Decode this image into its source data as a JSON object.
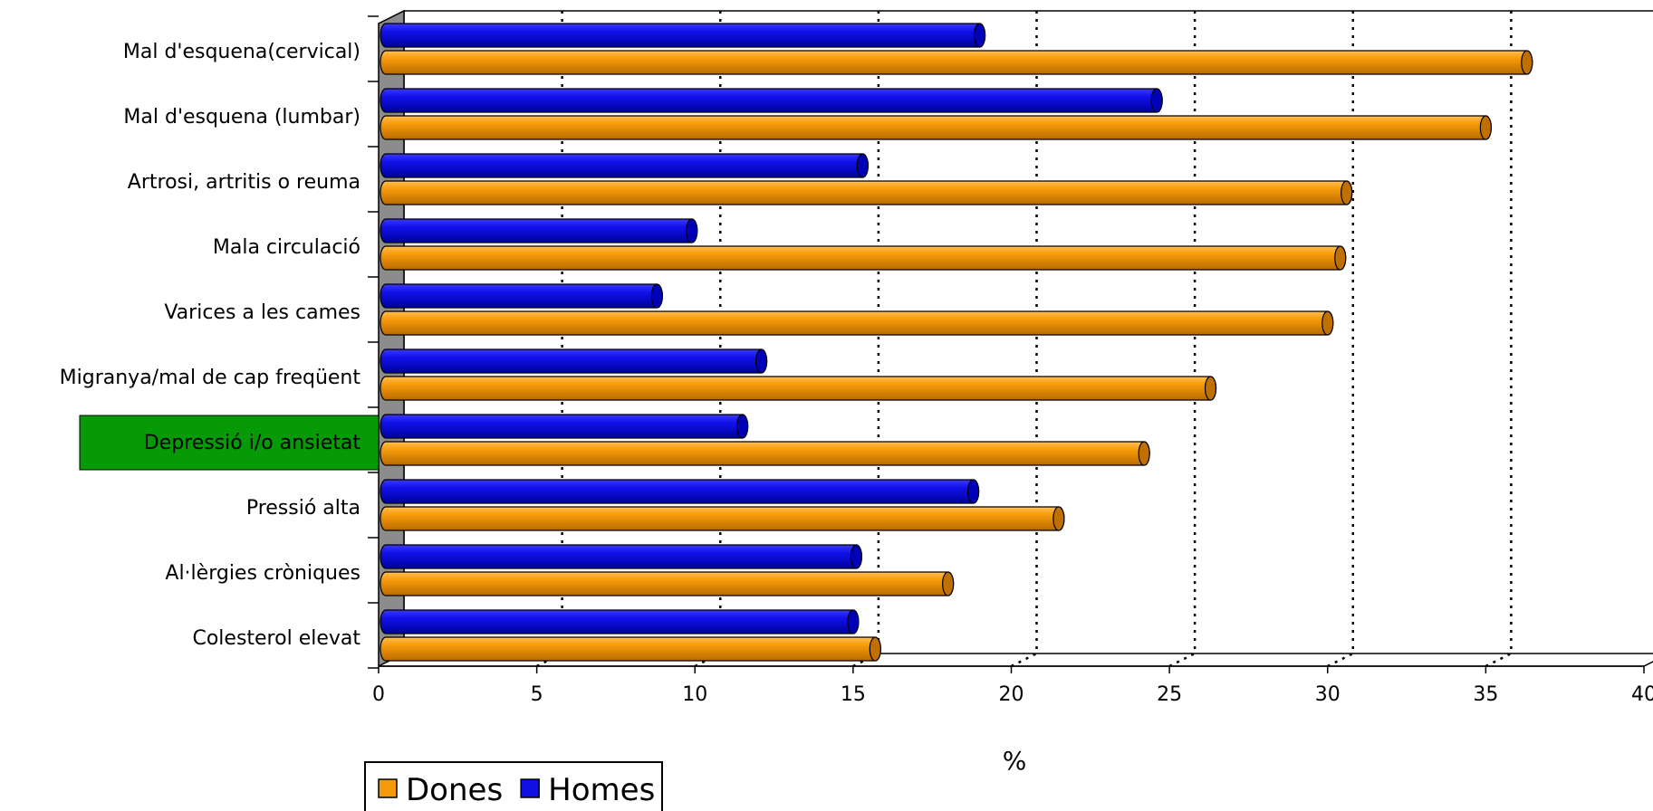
{
  "chart_data": {
    "type": "bar",
    "orientation": "horizontal",
    "categories": [
      "Mal d'esquena(cervical)",
      "Mal d'esquena (lumbar)",
      "Artrosi, artritis o reuma",
      "Mala circulació",
      "Varices a les cames",
      "Migranya/mal de cap freqüent",
      "Depressió i/o ansietat",
      "Pressió alta",
      "Al·lèrgies cròniques",
      "Colesterol elevat"
    ],
    "highlighted_category": "Depressió i/o ansietat",
    "series": [
      {
        "name": "Homes",
        "color": "#1010e0",
        "values": [
          19.0,
          24.6,
          15.3,
          9.9,
          8.8,
          12.1,
          11.5,
          18.8,
          15.1,
          15.0
        ]
      },
      {
        "name": "Dones",
        "color": "#f59a0a",
        "values": [
          36.3,
          35.0,
          30.6,
          30.4,
          30.0,
          26.3,
          24.2,
          21.5,
          18.0,
          15.7
        ]
      }
    ],
    "legend_order": [
      "Dones",
      "Homes"
    ],
    "xlabel": "%",
    "xlim": [
      0,
      40
    ],
    "xticks": [
      "0",
      "5",
      "10",
      "15",
      "20",
      "25",
      "30",
      "35",
      "40"
    ],
    "grid": "vertical dotted",
    "legend_position": "bottom-left",
    "highlight_color": "#079a07"
  }
}
